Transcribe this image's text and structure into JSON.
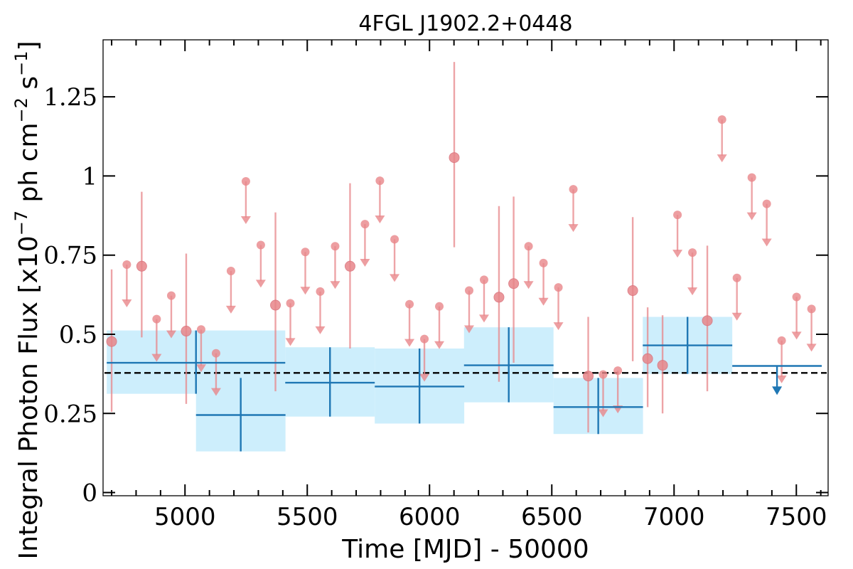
{
  "chart_data": {
    "type": "scatter",
    "title": "4FGL J1902.2+0448",
    "xlabel": "Time [MJD] - 50000",
    "ylabel": "Integral Photon Flux [x10",
    "ylabel_exp1": "−7",
    "ylabel_mid": " ph cm",
    "ylabel_exp2": "−2",
    "ylabel_mid2": " s",
    "ylabel_exp3": "−1",
    "ylabel_end": "]",
    "xlim": [
      4665,
      7630
    ],
    "ylim": [
      -0.01,
      1.43
    ],
    "xticks": [
      5000,
      5500,
      6000,
      6500,
      7000,
      7500
    ],
    "yticks": [
      {
        "value": 0,
        "label": "0"
      },
      {
        "value": 0.25,
        "label": "0.25"
      },
      {
        "value": 0.5,
        "label": "0.5"
      },
      {
        "value": 0.75,
        "label": "0.75"
      },
      {
        "value": 1,
        "label": "1"
      },
      {
        "value": 1.25,
        "label": "1.25"
      }
    ],
    "reference_line": {
      "y": 0.378,
      "style": "dashed"
    },
    "colors": {
      "points": "#e8868a",
      "binned": "#1f77b4",
      "band": "#cdeefc",
      "reference": "#000000"
    },
    "binned_series": [
      {
        "x": 5045,
        "xerr": 365,
        "y": 0.41,
        "yerr": [
          0.098,
          0.102
        ],
        "ul": false
      },
      {
        "x": 5228,
        "xerr": 183,
        "y": 0.245,
        "yerr": [
          0.115,
          0.117
        ],
        "ul": false
      },
      {
        "x": 5593,
        "xerr": 183,
        "y": 0.347,
        "yerr": [
          0.107,
          0.112
        ],
        "ul": false
      },
      {
        "x": 5959,
        "xerr": 183,
        "y": 0.335,
        "yerr": [
          0.117,
          0.12
        ],
        "ul": false
      },
      {
        "x": 6324,
        "xerr": 183,
        "y": 0.402,
        "yerr": [
          0.117,
          0.12
        ],
        "ul": false
      },
      {
        "x": 6690,
        "xerr": 183,
        "y": 0.27,
        "yerr": [
          0.085,
          0.092
        ],
        "ul": false
      },
      {
        "x": 7055,
        "xerr": 183,
        "y": 0.465,
        "yerr": [
          0.09,
          0.09
        ],
        "ul": false
      },
      {
        "x": 7421,
        "xerr": 183,
        "y": 0.4,
        "yerr": [
          0,
          0
        ],
        "ul": true
      }
    ],
    "binned_series_fixed_first_halfwidth": 183,
    "monthly_series": [
      {
        "x": 4700,
        "y": 0.477,
        "ylo": 0.255,
        "yhi": 0.705,
        "ul": false
      },
      {
        "x": 4762,
        "y": 0.72,
        "ul": true
      },
      {
        "x": 4823,
        "y": 0.715,
        "ylo": 0.49,
        "yhi": 0.95,
        "ul": false
      },
      {
        "x": 4884,
        "y": 0.548,
        "ul": true
      },
      {
        "x": 4944,
        "y": 0.622,
        "ul": true
      },
      {
        "x": 5005,
        "y": 0.51,
        "ylo": 0.28,
        "yhi": 0.755,
        "ul": false
      },
      {
        "x": 5066,
        "y": 0.515,
        "ul": true
      },
      {
        "x": 5127,
        "y": 0.44,
        "ul": true
      },
      {
        "x": 5188,
        "y": 0.7,
        "ul": true
      },
      {
        "x": 5249,
        "y": 0.983,
        "ul": true
      },
      {
        "x": 5310,
        "y": 0.782,
        "ul": true
      },
      {
        "x": 5370,
        "y": 0.592,
        "ylo": 0.32,
        "yhi": 0.885,
        "ul": false
      },
      {
        "x": 5431,
        "y": 0.598,
        "ul": true
      },
      {
        "x": 5492,
        "y": 0.76,
        "ul": true
      },
      {
        "x": 5553,
        "y": 0.635,
        "ul": true
      },
      {
        "x": 5614,
        "y": 0.778,
        "ul": true
      },
      {
        "x": 5675,
        "y": 0.715,
        "ylo": 0.455,
        "yhi": 0.977,
        "ul": false
      },
      {
        "x": 5736,
        "y": 0.848,
        "ul": true
      },
      {
        "x": 5797,
        "y": 0.985,
        "ul": true
      },
      {
        "x": 5857,
        "y": 0.8,
        "ul": true
      },
      {
        "x": 5918,
        "y": 0.595,
        "ul": true
      },
      {
        "x": 5979,
        "y": 0.485,
        "ul": true
      },
      {
        "x": 6040,
        "y": 0.588,
        "ul": true
      },
      {
        "x": 6101,
        "y": 1.058,
        "ylo": 0.775,
        "yhi": 1.36,
        "ul": false
      },
      {
        "x": 6162,
        "y": 0.638,
        "ul": true
      },
      {
        "x": 6223,
        "y": 0.672,
        "ul": true
      },
      {
        "x": 6284,
        "y": 0.617,
        "ylo": 0.35,
        "yhi": 0.905,
        "ul": false
      },
      {
        "x": 6344,
        "y": 0.66,
        "ylo": 0.41,
        "yhi": 0.935,
        "ul": false
      },
      {
        "x": 6405,
        "y": 0.778,
        "ul": true
      },
      {
        "x": 6466,
        "y": 0.725,
        "ul": true
      },
      {
        "x": 6527,
        "y": 0.648,
        "ul": true
      },
      {
        "x": 6588,
        "y": 0.958,
        "ul": true
      },
      {
        "x": 6649,
        "y": 0.368,
        "ylo": 0.19,
        "yhi": 0.555,
        "ul": false
      },
      {
        "x": 6710,
        "y": 0.373,
        "ul": true
      },
      {
        "x": 6770,
        "y": 0.385,
        "ul": true
      },
      {
        "x": 6831,
        "y": 0.638,
        "ylo": 0.415,
        "yhi": 0.87,
        "ul": false
      },
      {
        "x": 6892,
        "y": 0.423,
        "ylo": 0.27,
        "yhi": 0.585,
        "ul": false
      },
      {
        "x": 6953,
        "y": 0.402,
        "ylo": 0.25,
        "yhi": 0.56,
        "ul": false
      },
      {
        "x": 7014,
        "y": 0.877,
        "ul": true
      },
      {
        "x": 7075,
        "y": 0.758,
        "ul": true
      },
      {
        "x": 7136,
        "y": 0.543,
        "ylo": 0.32,
        "yhi": 0.78,
        "ul": false
      },
      {
        "x": 7196,
        "y": 1.178,
        "ul": true
      },
      {
        "x": 7257,
        "y": 0.678,
        "ul": true
      },
      {
        "x": 7318,
        "y": 0.995,
        "ul": true
      },
      {
        "x": 7379,
        "y": 0.912,
        "ul": true
      },
      {
        "x": 7440,
        "y": 0.48,
        "ul": true
      },
      {
        "x": 7501,
        "y": 0.618,
        "ul": true
      },
      {
        "x": 7562,
        "y": 0.58,
        "ul": true
      }
    ]
  }
}
